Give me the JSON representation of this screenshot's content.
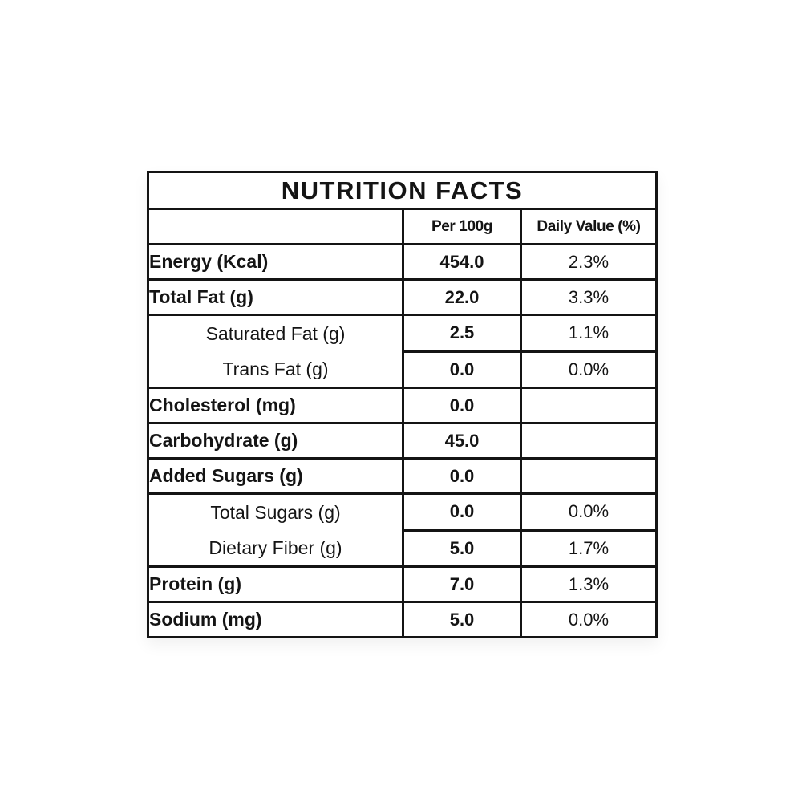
{
  "label": {
    "title": "NUTRITION FACTS",
    "columns": {
      "empty": "",
      "per_100g": "Per 100g",
      "daily_value": "Daily Value (%)"
    },
    "rows": [
      {
        "name": "Energy (Kcal)",
        "per_100g": "454.0",
        "daily_value": "2.3%",
        "style": "main"
      },
      {
        "name": "Total Fat (g)",
        "per_100g": "22.0",
        "daily_value": "3.3%",
        "style": "main"
      },
      {
        "name": "Saturated Fat (g)",
        "per_100g": "2.5",
        "daily_value": "1.1%",
        "style": "sub"
      },
      {
        "name": "Trans Fat (g)",
        "per_100g": "0.0",
        "daily_value": "0.0%",
        "style": "sub"
      },
      {
        "name": "Cholesterol (mg)",
        "per_100g": "0.0",
        "daily_value": "",
        "style": "main"
      },
      {
        "name": "Carbohydrate (g)",
        "per_100g": "45.0",
        "daily_value": "",
        "style": "main"
      },
      {
        "name": "Added Sugars (g)",
        "per_100g": "0.0",
        "daily_value": "",
        "style": "main"
      },
      {
        "name": "Total Sugars (g)",
        "per_100g": "0.0",
        "daily_value": "0.0%",
        "style": "sub"
      },
      {
        "name": "Dietary Fiber (g)",
        "per_100g": "5.0",
        "daily_value": "1.7%",
        "style": "sub"
      },
      {
        "name": "Protein (g)",
        "per_100g": "7.0",
        "daily_value": "1.3%",
        "style": "main"
      },
      {
        "name": "Sodium (mg)",
        "per_100g": "5.0",
        "daily_value": "0.0%",
        "style": "main"
      }
    ],
    "colors": {
      "border": "#141414",
      "text": "#141414",
      "background": "#ffffff"
    }
  }
}
